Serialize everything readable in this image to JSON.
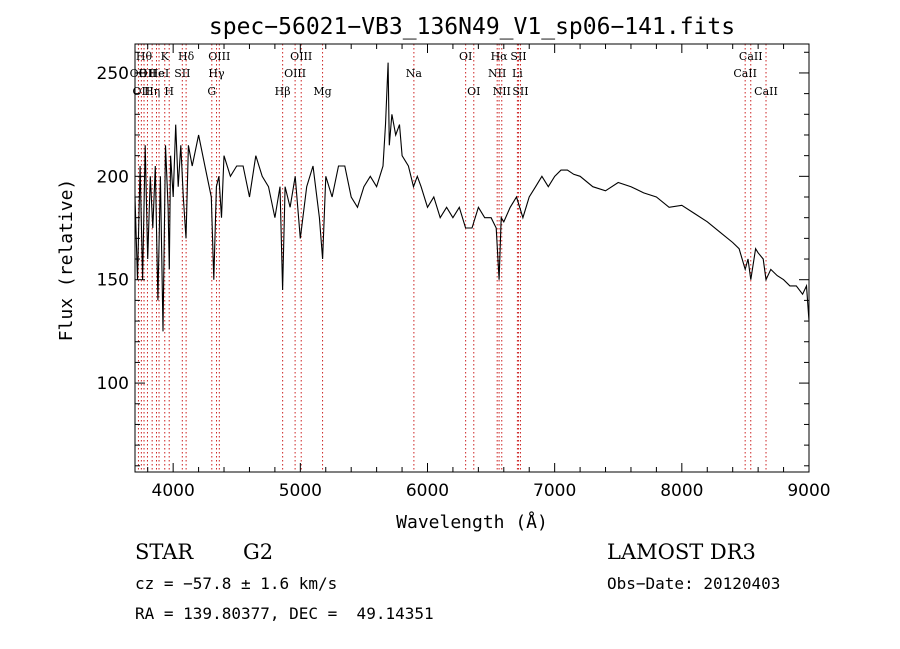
{
  "chart_data": {
    "type": "line",
    "title": "spec−56021−VB3_136N49_V1_sp06−141.fits",
    "xlabel": "Wavelength (Å)",
    "ylabel": "Flux (relative)",
    "xlim": [
      3700,
      9000
    ],
    "ylim": [
      57,
      264
    ],
    "x_ticks": [
      4000,
      5000,
      6000,
      7000,
      8000,
      9000
    ],
    "y_ticks": [
      100,
      150,
      200,
      250
    ],
    "spectrum": {
      "name": "flux",
      "x": [
        3700,
        3720,
        3740,
        3760,
        3780,
        3800,
        3820,
        3840,
        3860,
        3880,
        3900,
        3920,
        3940,
        3960,
        3970,
        3980,
        4000,
        4020,
        4040,
        4060,
        4080,
        4101,
        4120,
        4150,
        4200,
        4250,
        4300,
        4320,
        4340,
        4360,
        4380,
        4400,
        4450,
        4500,
        4550,
        4600,
        4650,
        4700,
        4750,
        4800,
        4840,
        4861,
        4880,
        4920,
        4960,
        5000,
        5050,
        5100,
        5150,
        5175,
        5200,
        5250,
        5300,
        5350,
        5400,
        5450,
        5500,
        5550,
        5600,
        5650,
        5670,
        5690,
        5700,
        5720,
        5750,
        5780,
        5800,
        5850,
        5890,
        5920,
        5950,
        6000,
        6050,
        6100,
        6150,
        6200,
        6250,
        6300,
        6350,
        6400,
        6450,
        6500,
        6540,
        6563,
        6580,
        6600,
        6650,
        6700,
        6750,
        6800,
        6850,
        6900,
        6950,
        7000,
        7050,
        7100,
        7150,
        7200,
        7300,
        7400,
        7500,
        7600,
        7700,
        7800,
        7900,
        8000,
        8100,
        8200,
        8300,
        8400,
        8450,
        8498,
        8520,
        8542,
        8580,
        8600,
        8640,
        8662,
        8700,
        8750,
        8800,
        8850,
        8900,
        8950,
        8980,
        9000
      ],
      "y": [
        190,
        150,
        205,
        150,
        215,
        160,
        200,
        175,
        205,
        140,
        200,
        125,
        215,
        185,
        155,
        210,
        190,
        225,
        195,
        215,
        190,
        170,
        215,
        205,
        220,
        205,
        190,
        150,
        195,
        200,
        180,
        210,
        200,
        205,
        205,
        190,
        210,
        200,
        195,
        180,
        195,
        145,
        195,
        185,
        200,
        170,
        195,
        205,
        180,
        160,
        200,
        190,
        205,
        205,
        190,
        185,
        195,
        200,
        195,
        205,
        225,
        255,
        215,
        230,
        220,
        225,
        210,
        205,
        195,
        200,
        195,
        185,
        190,
        180,
        185,
        180,
        185,
        175,
        175,
        185,
        180,
        180,
        175,
        150,
        180,
        178,
        185,
        190,
        180,
        190,
        195,
        200,
        195,
        200,
        203,
        203,
        201,
        200,
        195,
        193,
        197,
        195,
        192,
        190,
        185,
        186,
        182,
        178,
        173,
        168,
        165,
        155,
        160,
        150,
        165,
        163,
        160,
        150,
        155,
        152,
        150,
        147,
        147,
        143,
        147,
        130
      ]
    },
    "spectral_lines": [
      {
        "wavelength": 3727,
        "label": "OII",
        "row": 1
      },
      {
        "wavelength": 3750,
        "label": "OII",
        "row": 2
      },
      {
        "wavelength": 3771,
        "label": "Hθ",
        "row": 0
      },
      {
        "wavelength": 3798,
        "label": "OII",
        "row": 1
      },
      {
        "wavelength": 3835,
        "label": "Hη",
        "row": 2
      },
      {
        "wavelength": 3869,
        "label": "He",
        "row": 1
      },
      {
        "wavelength": 3889,
        "label": "HeI",
        "row": 1
      },
      {
        "wavelength": 3934,
        "label": "K",
        "row": 0
      },
      {
        "wavelength": 3969,
        "label": "H",
        "row": 2
      },
      {
        "wavelength": 4072,
        "label": "SII",
        "row": 1
      },
      {
        "wavelength": 4102,
        "label": "Hδ",
        "row": 0
      },
      {
        "wavelength": 4304,
        "label": "G",
        "row": 2
      },
      {
        "wavelength": 4341,
        "label": "Hγ",
        "row": 1
      },
      {
        "wavelength": 4363,
        "label": "OIII",
        "row": 0
      },
      {
        "wavelength": 4861,
        "label": "Hβ",
        "row": 2
      },
      {
        "wavelength": 4959,
        "label": "OIII",
        "row": 1
      },
      {
        "wavelength": 5007,
        "label": "OIII",
        "row": 0
      },
      {
        "wavelength": 5175,
        "label": "Mg",
        "row": 2
      },
      {
        "wavelength": 5893,
        "label": "Na",
        "row": 1
      },
      {
        "wavelength": 6300,
        "label": "OI",
        "row": 0
      },
      {
        "wavelength": 6364,
        "label": "OI",
        "row": 2
      },
      {
        "wavelength": 6548,
        "label": "NII",
        "row": 1
      },
      {
        "wavelength": 6563,
        "label": "Hα",
        "row": 0
      },
      {
        "wavelength": 6584,
        "label": "NII",
        "row": 2
      },
      {
        "wavelength": 6707,
        "label": "Li",
        "row": 1
      },
      {
        "wavelength": 6716,
        "label": "SII",
        "row": 0
      },
      {
        "wavelength": 6731,
        "label": "SII",
        "row": 2
      },
      {
        "wavelength": 8498,
        "label": "CaII",
        "row": 1
      },
      {
        "wavelength": 8542,
        "label": "CaII",
        "row": 0
      },
      {
        "wavelength": 8662,
        "label": "CaII",
        "row": 2
      }
    ],
    "line_color": "#000000",
    "marker_color": "#cc2222"
  },
  "info": {
    "object_class": "STAR",
    "subclass": "G2",
    "survey": "LAMOST DR3",
    "velocity": "cz = −57.8 ± 1.6 km/s",
    "obs_date": "Obs−Date: 20120403",
    "coords": "RA = 139.80377, DEC =  49.14351"
  }
}
